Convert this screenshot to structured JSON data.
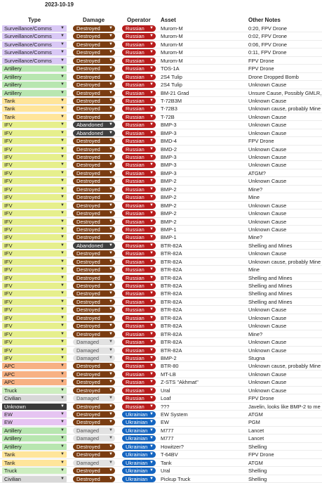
{
  "date": "2023-10-19",
  "headers": {
    "type": "Type",
    "damage": "Damage",
    "operator": "Operator",
    "asset": "Asset",
    "notes": "Other Notes"
  },
  "colors": {
    "type": {
      "Surveillance/Comms": "#d9c8f5",
      "Artillery": "#b8e6b0",
      "Tank": "#ffe59a",
      "IFV": "#e6ef8c",
      "APC": "#f7b183",
      "Truck": "#cdeec0",
      "Civilian": "#d8d8d8",
      "Unknown": "#3a3a3a",
      "EW": "#e6c4f2"
    },
    "damage": {
      "Destroyed": "#7a3d12",
      "Abandoned": "#3f3f3f",
      "Damaged": "#e2e2e2"
    },
    "operator": {
      "Russian": "#b71c1c",
      "Ukrainian": "#1565c0"
    }
  },
  "rows": [
    {
      "type": "Surveillance/Comms",
      "damage": "Destroyed",
      "operator": "Russian",
      "asset": "Murom-M",
      "notes": "0:20, FPV Drone"
    },
    {
      "type": "Surveillance/Comms",
      "damage": "Destroyed",
      "operator": "Russian",
      "asset": "Murom-M",
      "notes": "0:02, FPV Drone"
    },
    {
      "type": "Surveillance/Comms",
      "damage": "Destroyed",
      "operator": "Russian",
      "asset": "Murom-M",
      "notes": "0:06, FPV Drone"
    },
    {
      "type": "Surveillance/Comms",
      "damage": "Destroyed",
      "operator": "Russian",
      "asset": "Murom-M",
      "notes": "0:11, FPV Drone"
    },
    {
      "type": "Surveillance/Comms",
      "damage": "Destroyed",
      "operator": "Russian",
      "asset": "Murom-M",
      "notes": "FPV Drone"
    },
    {
      "type": "Artillery",
      "damage": "Destroyed",
      "operator": "Russian",
      "asset": "TOS-1A",
      "notes": "FPV Drone"
    },
    {
      "type": "Artillery",
      "damage": "Destroyed",
      "operator": "Russian",
      "asset": "2S4 Tulip",
      "notes": "Drone Dropped Bomb"
    },
    {
      "type": "Artillery",
      "damage": "Destroyed",
      "operator": "Russian",
      "asset": "2S4 Tulip",
      "notes": "Unknown Cause"
    },
    {
      "type": "Artillery",
      "damage": "Destroyed",
      "operator": "Russian",
      "asset": "BM-21 Grad",
      "notes": "Unsure Cause, Possibly GMLR, h"
    },
    {
      "type": "Tank",
      "damage": "Destroyed",
      "operator": "Russian",
      "asset": "T-72B3M",
      "notes": "Unknown Cause"
    },
    {
      "type": "Tank",
      "damage": "Destroyed",
      "operator": "Russian",
      "asset": "T-72B3",
      "notes": "Unknown cause, probably Mine"
    },
    {
      "type": "Tank",
      "damage": "Destroyed",
      "operator": "Russian",
      "asset": "T-72B",
      "notes": "Unknown Cause"
    },
    {
      "type": "IFV",
      "damage": "Abandoned",
      "operator": "Russian",
      "asset": "BMP-3",
      "notes": "Unknown Cause"
    },
    {
      "type": "IFV",
      "damage": "Abandoned",
      "operator": "Russian",
      "asset": "BMP-3",
      "notes": "Unknown Cause"
    },
    {
      "type": "IFV",
      "damage": "Destroyed",
      "operator": "Russian",
      "asset": "BMD-4",
      "notes": "FPV Drone"
    },
    {
      "type": "IFV",
      "damage": "Destroyed",
      "operator": "Russian",
      "asset": "BMD-2",
      "notes": "Unknown Cause"
    },
    {
      "type": "IFV",
      "damage": "Destroyed",
      "operator": "Russian",
      "asset": "BMP-3",
      "notes": "Unknown Cause"
    },
    {
      "type": "IFV",
      "damage": "Destroyed",
      "operator": "Russian",
      "asset": "BMP-3",
      "notes": "Unknown Cause"
    },
    {
      "type": "IFV",
      "damage": "Destroyed",
      "operator": "Russian",
      "asset": "BMP-3",
      "notes": "ATGM?"
    },
    {
      "type": "IFV",
      "damage": "Destroyed",
      "operator": "Russian",
      "asset": "BMP-2",
      "notes": "Unknown Cause"
    },
    {
      "type": "IFV",
      "damage": "Destroyed",
      "operator": "Russian",
      "asset": "BMP-2",
      "notes": "Mine?"
    },
    {
      "type": "IFV",
      "damage": "Destroyed",
      "operator": "Russian",
      "asset": "BMP-2",
      "notes": "Mine"
    },
    {
      "type": "IFV",
      "damage": "Destroyed",
      "operator": "Russian",
      "asset": "BMP-2",
      "notes": "Unknown Cause"
    },
    {
      "type": "IFV",
      "damage": "Destroyed",
      "operator": "Russian",
      "asset": "BMP-2",
      "notes": "Unknown Cause"
    },
    {
      "type": "IFV",
      "damage": "Destroyed",
      "operator": "Russian",
      "asset": "BMP-2",
      "notes": "Unknown Cause"
    },
    {
      "type": "IFV",
      "damage": "Destroyed",
      "operator": "Russian",
      "asset": "BMP-1",
      "notes": "Unknown Cause"
    },
    {
      "type": "IFV",
      "damage": "Destroyed",
      "operator": "Russian",
      "asset": "BMP-1",
      "notes": "Mine?"
    },
    {
      "type": "IFV",
      "damage": "Abandoned",
      "operator": "Russian",
      "asset": "BTR-82A",
      "notes": "Shelling and Mines"
    },
    {
      "type": "IFV",
      "damage": "Destroyed",
      "operator": "Russian",
      "asset": "BTR-82A",
      "notes": "Unknown Cause"
    },
    {
      "type": "IFV",
      "damage": "Destroyed",
      "operator": "Russian",
      "asset": "BTR-82A",
      "notes": "Unknown cause, probably Mine"
    },
    {
      "type": "IFV",
      "damage": "Destroyed",
      "operator": "Russian",
      "asset": "BTR-82A",
      "notes": "Mine"
    },
    {
      "type": "IFV",
      "damage": "Destroyed",
      "operator": "Russian",
      "asset": "BTR-82A",
      "notes": "Shelling and Mines"
    },
    {
      "type": "IFV",
      "damage": "Destroyed",
      "operator": "Russian",
      "asset": "BTR-82A",
      "notes": "Shelling and Mines"
    },
    {
      "type": "IFV",
      "damage": "Destroyed",
      "operator": "Russian",
      "asset": "BTR-82A",
      "notes": "Shelling and Mines"
    },
    {
      "type": "IFV",
      "damage": "Destroyed",
      "operator": "Russian",
      "asset": "BTR-82A",
      "notes": "Shelling and Mines"
    },
    {
      "type": "IFV",
      "damage": "Destroyed",
      "operator": "Russian",
      "asset": "BTR-82A",
      "notes": "Unknown Cause"
    },
    {
      "type": "IFV",
      "damage": "Destroyed",
      "operator": "Russian",
      "asset": "BTR-82A",
      "notes": "Unknown Cause"
    },
    {
      "type": "IFV",
      "damage": "Destroyed",
      "operator": "Russian",
      "asset": "BTR-82A",
      "notes": "Unknown Cause"
    },
    {
      "type": "IFV",
      "damage": "Destroyed",
      "operator": "Russian",
      "asset": "BTR-82A",
      "notes": "Mine?"
    },
    {
      "type": "IFV",
      "damage": "Damaged",
      "operator": "Russian",
      "asset": "BTR-82A",
      "notes": "Unknown Cause"
    },
    {
      "type": "IFV",
      "damage": "Damaged",
      "operator": "Russian",
      "asset": "BTR-82A",
      "notes": "Unknown Cause"
    },
    {
      "type": "IFV",
      "damage": "Damaged",
      "operator": "Russian",
      "asset": "BMP-2",
      "notes": "Stugna"
    },
    {
      "type": "APC",
      "damage": "Destroyed",
      "operator": "Russian",
      "asset": "BTR-80",
      "notes": "Unknown cause, probably Mine"
    },
    {
      "type": "APC",
      "damage": "Destroyed",
      "operator": "Russian",
      "asset": "MT-LB",
      "notes": "Unknown Cause"
    },
    {
      "type": "APC",
      "damage": "Destroyed",
      "operator": "Russian",
      "asset": "Z-STS \"Akhmat\"",
      "notes": "Unknown Cause"
    },
    {
      "type": "Truck",
      "damage": "Destroyed",
      "operator": "Russian",
      "asset": "Ural",
      "notes": "Unknown Cause"
    },
    {
      "type": "Civilian",
      "damage": "Damaged",
      "operator": "Russian",
      "asset": "Loaf",
      "notes": "FPV Drone"
    },
    {
      "type": "Unknown",
      "damage": "Destroyed",
      "operator": "Russian",
      "asset": "???",
      "notes": "Javelin, looks like BMP-2 to me"
    },
    {
      "type": "EW",
      "damage": "Destroyed",
      "operator": "Ukrainian",
      "asset": "EW System",
      "notes": "ATGM"
    },
    {
      "type": "EW",
      "damage": "Destroyed",
      "operator": "Ukrainian",
      "asset": "EW",
      "notes": "PGM"
    },
    {
      "type": "Artillery",
      "damage": "Damaged",
      "operator": "Ukrainian",
      "asset": "M777",
      "notes": "Lancet"
    },
    {
      "type": "Artillery",
      "damage": "Damaged",
      "operator": "Ukrainian",
      "asset": "M777",
      "notes": "Lancet"
    },
    {
      "type": "Artillery",
      "damage": "Destroyed",
      "operator": "Ukrainian",
      "asset": "Howitzer?",
      "notes": "Shelling"
    },
    {
      "type": "Tank",
      "damage": "Destroyed",
      "operator": "Ukrainian",
      "asset": "T-64BV",
      "notes": "FPV Drone"
    },
    {
      "type": "Tank",
      "damage": "Damaged",
      "operator": "Ukrainian",
      "asset": "Tank",
      "notes": "ATGM"
    },
    {
      "type": "Truck",
      "damage": "Destroyed",
      "operator": "Ukrainian",
      "asset": "Ural",
      "notes": "Shelling"
    },
    {
      "type": "Civilian",
      "damage": "Destroyed",
      "operator": "Ukrainian",
      "asset": "Pickup Truck",
      "notes": "Shelling"
    }
  ]
}
